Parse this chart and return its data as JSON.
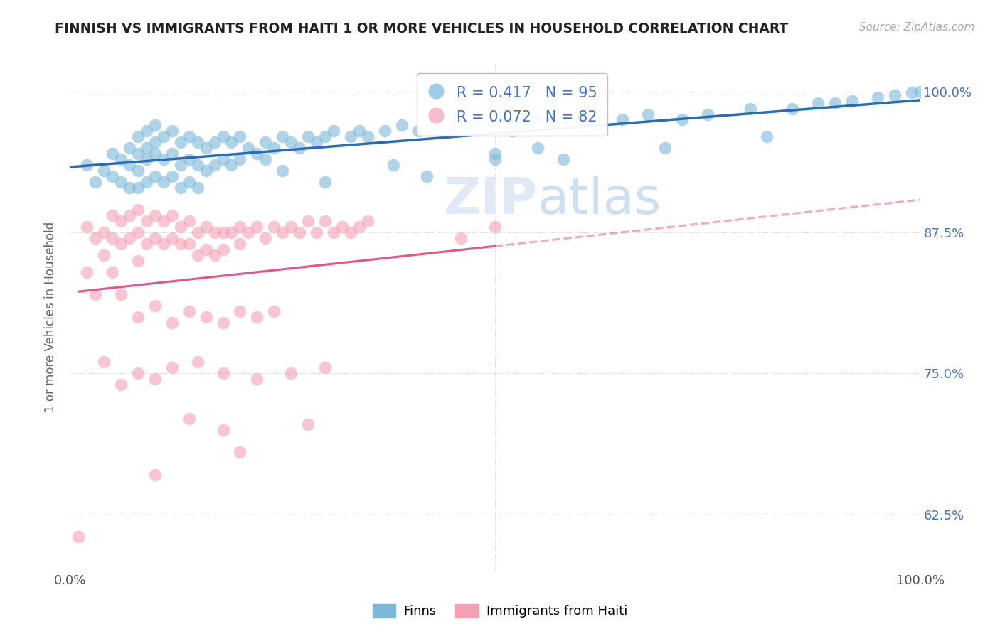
{
  "title": "FINNISH VS IMMIGRANTS FROM HAITI 1 OR MORE VEHICLES IN HOUSEHOLD CORRELATION CHART",
  "source": "Source: ZipAtlas.com",
  "ylabel": "1 or more Vehicles in Household",
  "legend_label1": "Finns",
  "legend_label2": "Immigrants from Haiti",
  "R1": 0.417,
  "N1": 95,
  "R2": 0.072,
  "N2": 82,
  "color1": "#7ab8d9",
  "color2": "#f4a0b5",
  "line_color1": "#2b6cb8",
  "line_color2": "#e8528a",
  "background_color": "#ffffff",
  "grid_color": "#cccccc",
  "ytick_color": "#4472c4",
  "title_color": "#222222",
  "xlim": [
    0.0,
    1.0
  ],
  "ylim": [
    0.575,
    1.025
  ],
  "yticks": [
    0.625,
    0.75,
    0.875,
    1.0
  ],
  "ytick_labels": [
    "62.5%",
    "75.0%",
    "87.5%",
    "100.0%"
  ],
  "finns_x": [
    0.02,
    0.03,
    0.04,
    0.05,
    0.05,
    0.06,
    0.06,
    0.07,
    0.07,
    0.07,
    0.08,
    0.08,
    0.08,
    0.08,
    0.09,
    0.09,
    0.09,
    0.09,
    0.1,
    0.1,
    0.1,
    0.1,
    0.11,
    0.11,
    0.11,
    0.12,
    0.12,
    0.12,
    0.13,
    0.13,
    0.13,
    0.14,
    0.14,
    0.14,
    0.15,
    0.15,
    0.15,
    0.16,
    0.16,
    0.17,
    0.17,
    0.18,
    0.18,
    0.19,
    0.19,
    0.2,
    0.2,
    0.21,
    0.22,
    0.23,
    0.23,
    0.24,
    0.25,
    0.26,
    0.27,
    0.28,
    0.29,
    0.3,
    0.31,
    0.33,
    0.34,
    0.35,
    0.37,
    0.39,
    0.41,
    0.43,
    0.45,
    0.47,
    0.5,
    0.52,
    0.55,
    0.57,
    0.6,
    0.62,
    0.65,
    0.68,
    0.72,
    0.75,
    0.8,
    0.85,
    0.88,
    0.9,
    0.92,
    0.95,
    0.97,
    0.99,
    1.0,
    0.42,
    0.3,
    0.25,
    0.58,
    0.7,
    0.82,
    0.5,
    0.38,
    0.55
  ],
  "finns_y": [
    0.935,
    0.92,
    0.93,
    0.945,
    0.925,
    0.94,
    0.92,
    0.95,
    0.935,
    0.915,
    0.945,
    0.96,
    0.93,
    0.915,
    0.95,
    0.965,
    0.94,
    0.92,
    0.955,
    0.97,
    0.945,
    0.925,
    0.96,
    0.94,
    0.92,
    0.965,
    0.945,
    0.925,
    0.955,
    0.935,
    0.915,
    0.96,
    0.94,
    0.92,
    0.955,
    0.935,
    0.915,
    0.95,
    0.93,
    0.955,
    0.935,
    0.96,
    0.94,
    0.955,
    0.935,
    0.96,
    0.94,
    0.95,
    0.945,
    0.955,
    0.94,
    0.95,
    0.96,
    0.955,
    0.95,
    0.96,
    0.955,
    0.96,
    0.965,
    0.96,
    0.965,
    0.96,
    0.965,
    0.97,
    0.965,
    0.97,
    0.965,
    0.97,
    0.94,
    0.965,
    0.975,
    0.97,
    0.975,
    0.97,
    0.975,
    0.98,
    0.975,
    0.98,
    0.985,
    0.985,
    0.99,
    0.99,
    0.992,
    0.995,
    0.997,
    0.999,
    1.0,
    0.925,
    0.92,
    0.93,
    0.94,
    0.95,
    0.96,
    0.945,
    0.935,
    0.95
  ],
  "haiti_x": [
    0.01,
    0.02,
    0.02,
    0.03,
    0.03,
    0.04,
    0.04,
    0.05,
    0.05,
    0.05,
    0.06,
    0.06,
    0.07,
    0.07,
    0.08,
    0.08,
    0.08,
    0.09,
    0.09,
    0.1,
    0.1,
    0.11,
    0.11,
    0.12,
    0.12,
    0.13,
    0.13,
    0.14,
    0.14,
    0.15,
    0.15,
    0.16,
    0.16,
    0.17,
    0.17,
    0.18,
    0.18,
    0.19,
    0.2,
    0.2,
    0.21,
    0.22,
    0.23,
    0.24,
    0.25,
    0.26,
    0.27,
    0.28,
    0.29,
    0.3,
    0.31,
    0.32,
    0.33,
    0.34,
    0.35,
    0.06,
    0.08,
    0.1,
    0.12,
    0.14,
    0.16,
    0.18,
    0.2,
    0.22,
    0.24,
    0.04,
    0.06,
    0.08,
    0.1,
    0.12,
    0.15,
    0.18,
    0.22,
    0.26,
    0.3,
    0.14,
    0.18,
    0.28,
    0.46,
    0.5,
    0.1,
    0.2
  ],
  "haiti_y": [
    0.605,
    0.88,
    0.84,
    0.87,
    0.82,
    0.875,
    0.855,
    0.89,
    0.87,
    0.84,
    0.885,
    0.865,
    0.89,
    0.87,
    0.895,
    0.875,
    0.85,
    0.885,
    0.865,
    0.89,
    0.87,
    0.885,
    0.865,
    0.89,
    0.87,
    0.88,
    0.865,
    0.885,
    0.865,
    0.875,
    0.855,
    0.88,
    0.86,
    0.875,
    0.855,
    0.875,
    0.86,
    0.875,
    0.88,
    0.865,
    0.875,
    0.88,
    0.87,
    0.88,
    0.875,
    0.88,
    0.875,
    0.885,
    0.875,
    0.885,
    0.875,
    0.88,
    0.875,
    0.88,
    0.885,
    0.82,
    0.8,
    0.81,
    0.795,
    0.805,
    0.8,
    0.795,
    0.805,
    0.8,
    0.805,
    0.76,
    0.74,
    0.75,
    0.745,
    0.755,
    0.76,
    0.75,
    0.745,
    0.75,
    0.755,
    0.71,
    0.7,
    0.705,
    0.87,
    0.88,
    0.66,
    0.68
  ]
}
